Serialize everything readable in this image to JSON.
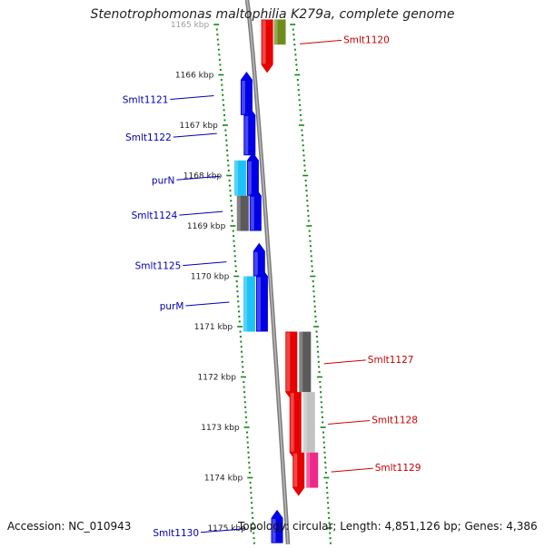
{
  "title": "Stenotrophomonas maltophilia K279a, complete genome",
  "footer": {
    "accession": "Accession: NC_010943",
    "topology": "Topology: circular; Length: 4,851,126 bp; Genes: 4,386"
  },
  "colors": {
    "gene_blue": "#0000e6",
    "gene_cyan": "#1ec3f5",
    "gene_red": "#e60000",
    "gene_olive": "#6e8c1e",
    "gene_grey": "#5a5a5a",
    "gene_light_grey": "#c2c2c2",
    "gene_pink": "#ee2888",
    "tick_green": "#138713",
    "label_blue": "#0000b4",
    "label_red": "#cc0000"
  },
  "ruler": {
    "unit": "kbp",
    "ticks": [
      {
        "pos": 1165,
        "label": "1165 kbp"
      },
      {
        "pos": 1166,
        "label": "1166 kbp"
      },
      {
        "pos": 1167,
        "label": "1167 kbp"
      },
      {
        "pos": 1168,
        "label": "1168 kbp"
      },
      {
        "pos": 1169,
        "label": "1169 kbp"
      },
      {
        "pos": 1170,
        "label": "1170 kbp"
      },
      {
        "pos": 1171,
        "label": "1171 kbp"
      },
      {
        "pos": 1172,
        "label": "1172 kbp"
      },
      {
        "pos": 1173,
        "label": "1173 kbp"
      },
      {
        "pos": 1174,
        "label": "1174 kbp"
      },
      {
        "pos": 1175,
        "label": "1175 kbp"
      }
    ]
  },
  "genes": [
    {
      "name": "Smlt1120",
      "strand": "-",
      "start": 1164.9,
      "end": 1165.8,
      "track": "orf",
      "color": "red",
      "labelled": true
    },
    {
      "name": "",
      "strand": "-",
      "start": 1164.9,
      "end": 1165.4,
      "track": "cog",
      "color": "olive"
    },
    {
      "name": "Smlt1121",
      "strand": "+",
      "start": 1166.1,
      "end": 1166.8,
      "track": "orf",
      "color": "blue",
      "labelled": true
    },
    {
      "name": "Smlt1122",
      "strand": "+",
      "start": 1166.8,
      "end": 1167.6,
      "track": "orf",
      "color": "blue",
      "labelled": true
    },
    {
      "name": "purN",
      "strand": "+",
      "start": 1167.7,
      "end": 1168.4,
      "track": "orf",
      "color": "blue",
      "labelled": true
    },
    {
      "name": "",
      "strand": "+",
      "start": 1167.7,
      "end": 1168.4,
      "track": "cog",
      "color": "cyan"
    },
    {
      "name": "Smlt1124",
      "strand": "+",
      "start": 1168.4,
      "end": 1169.1,
      "track": "orf",
      "color": "blue",
      "labelled": true
    },
    {
      "name": "",
      "strand": "+",
      "start": 1168.4,
      "end": 1169.1,
      "track": "cog",
      "color": "grey"
    },
    {
      "name": "Smlt1125",
      "strand": "+",
      "start": 1169.5,
      "end": 1170.0,
      "track": "orf",
      "color": "blue",
      "labelled": true
    },
    {
      "name": "purM",
      "strand": "+",
      "start": 1170.0,
      "end": 1171.1,
      "track": "orf",
      "color": "blue",
      "labelled": true
    },
    {
      "name": "",
      "strand": "+",
      "start": 1170.0,
      "end": 1171.1,
      "track": "cog",
      "color": "cyan"
    },
    {
      "name": "Smlt1127",
      "strand": "-",
      "start": 1171.1,
      "end": 1172.3,
      "track": "orf",
      "color": "red",
      "labelled": true
    },
    {
      "name": "",
      "strand": "-",
      "start": 1171.1,
      "end": 1172.3,
      "track": "cog",
      "color": "grey"
    },
    {
      "name": "Smlt1128",
      "strand": "-",
      "start": 1172.3,
      "end": 1173.5,
      "track": "orf",
      "color": "red",
      "labelled": true
    },
    {
      "name": "",
      "strand": "-",
      "start": 1172.3,
      "end": 1173.5,
      "track": "cog",
      "color": "light_grey"
    },
    {
      "name": "Smlt1129",
      "strand": "-",
      "start": 1173.5,
      "end": 1174.2,
      "track": "orf",
      "color": "red",
      "labelled": true
    },
    {
      "name": "",
      "strand": "-",
      "start": 1173.5,
      "end": 1174.2,
      "track": "cog",
      "color": "pink"
    },
    {
      "name": "Smlt1130",
      "strand": "+",
      "start": 1174.8,
      "end": 1175.3,
      "track": "orf",
      "color": "blue",
      "labelled": true
    }
  ]
}
